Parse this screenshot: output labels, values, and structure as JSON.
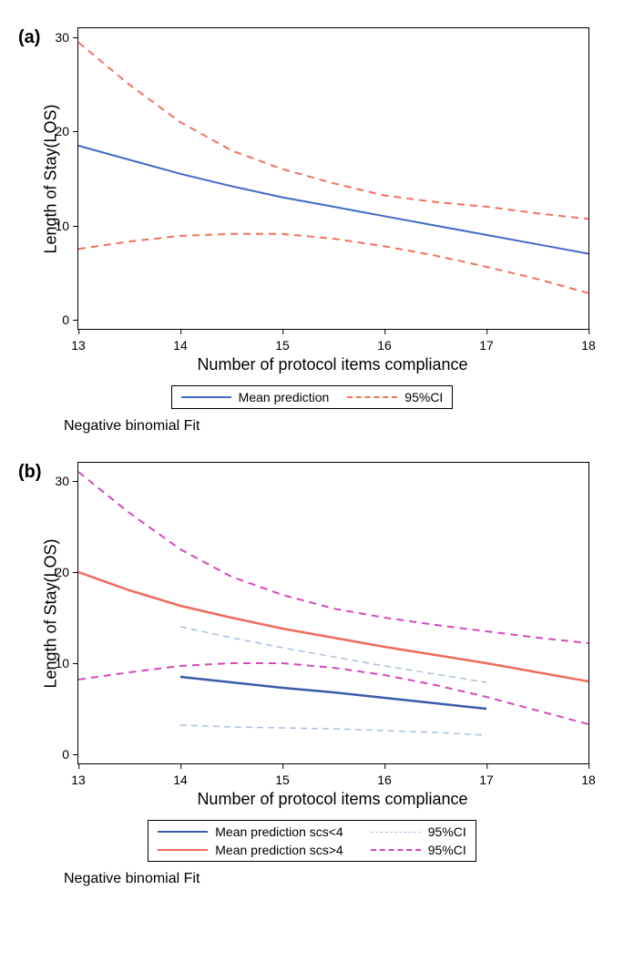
{
  "panel_a": {
    "label": "(a)",
    "type": "line",
    "x_label": "Number of protocol items compliance",
    "y_label": "Length of Stay(LOS)",
    "x_ticks": [
      13,
      14,
      15,
      16,
      17,
      18
    ],
    "y_ticks": [
      0,
      10,
      20,
      30
    ],
    "xlim": [
      13,
      18
    ],
    "ylim": [
      -1,
      31
    ],
    "plot_bg": "#ffffff",
    "border_color": "#000000",
    "tick_fontsize": 14,
    "label_fontsize": 18,
    "series": [
      {
        "name": "mean",
        "label": "Mean prediction",
        "color": "#4169c8",
        "width": 2,
        "dash": "none",
        "x": [
          13,
          13.5,
          14,
          14.5,
          15,
          15.5,
          16,
          16.5,
          17,
          17.5,
          18
        ],
        "y": [
          18.5,
          17.0,
          15.5,
          14.2,
          13.0,
          12.0,
          11.0,
          10.0,
          9.0,
          8.0,
          7.0
        ]
      },
      {
        "name": "ci_upper",
        "label": "95%CI",
        "color": "#f1725e",
        "width": 2,
        "dash": "8,6",
        "x": [
          13,
          13.5,
          14,
          14.5,
          15,
          15.5,
          16,
          16.5,
          17,
          17.5,
          18
        ],
        "y": [
          29.5,
          25.0,
          21.0,
          18.0,
          16.0,
          14.5,
          13.2,
          12.5,
          12.0,
          11.3,
          10.7
        ]
      },
      {
        "name": "ci_lower",
        "label": "95%CI",
        "color": "#f1725e",
        "width": 2,
        "dash": "8,6",
        "x": [
          13,
          13.5,
          14,
          14.5,
          15,
          15.5,
          16,
          16.5,
          17,
          17.5,
          18
        ],
        "y": [
          7.5,
          8.3,
          8.9,
          9.1,
          9.1,
          8.6,
          7.8,
          6.8,
          5.6,
          4.3,
          2.8
        ]
      }
    ],
    "legend": [
      {
        "color": "#4169c8",
        "dash": "solid",
        "label": "Mean prediction"
      },
      {
        "color": "#f1725e",
        "dash": "dashed",
        "label": "95%CI"
      }
    ],
    "caption": "Negative binomial Fit"
  },
  "panel_b": {
    "label": "(b)",
    "type": "line",
    "x_label": "Number of protocol items compliance",
    "y_label": "Length of Stay(LOS)",
    "x_ticks": [
      13,
      14,
      15,
      16,
      17,
      18
    ],
    "y_ticks": [
      0,
      10,
      20,
      30
    ],
    "xlim": [
      13,
      18
    ],
    "ylim": [
      -1,
      32
    ],
    "plot_bg": "#ffffff",
    "border_color": "#000000",
    "tick_fontsize": 14,
    "label_fontsize": 18,
    "series": [
      {
        "name": "scs_lt4_mean",
        "label": "Mean prediction scs<4",
        "color": "#3a5ba8",
        "width": 2.5,
        "dash": "none",
        "x": [
          14,
          14.5,
          15,
          15.5,
          16,
          16.5,
          17
        ],
        "y": [
          8.5,
          7.9,
          7.3,
          6.8,
          6.2,
          5.6,
          5.0
        ]
      },
      {
        "name": "scs_lt4_ci_upper",
        "label": "95%CI scs<4",
        "color": "#a8c0e0",
        "width": 1.5,
        "dash": "7,5",
        "x": [
          14,
          14.5,
          15,
          15.5,
          16,
          16.5,
          17
        ],
        "y": [
          14.0,
          12.8,
          11.7,
          10.7,
          9.7,
          8.8,
          7.9
        ]
      },
      {
        "name": "scs_lt4_ci_lower",
        "label": "95%CI scs<4",
        "color": "#a8c0e0",
        "width": 1.5,
        "dash": "7,5",
        "x": [
          14,
          14.5,
          15,
          15.5,
          16,
          16.5,
          17
        ],
        "y": [
          3.2,
          3.0,
          2.9,
          2.8,
          2.6,
          2.4,
          2.1
        ]
      },
      {
        "name": "scs_gt4_mean",
        "label": "Mean prediction scs>4",
        "color": "#ef6b5a",
        "width": 2.5,
        "dash": "none",
        "x": [
          13,
          13.5,
          14,
          14.5,
          15,
          15.5,
          16,
          16.5,
          17,
          17.5,
          18
        ],
        "y": [
          20.0,
          18.0,
          16.3,
          15.0,
          13.8,
          12.8,
          11.8,
          10.9,
          10.0,
          9.0,
          8.0
        ]
      },
      {
        "name": "scs_gt4_ci_upper",
        "label": "95%CI scs>4",
        "color": "#d448c0",
        "width": 2,
        "dash": "8,6",
        "x": [
          13,
          13.5,
          14,
          14.5,
          15,
          15.5,
          16,
          16.5,
          17,
          17.5,
          18
        ],
        "y": [
          31.0,
          26.5,
          22.5,
          19.5,
          17.5,
          16.0,
          15.0,
          14.2,
          13.5,
          12.8,
          12.2
        ]
      },
      {
        "name": "scs_gt4_ci_lower",
        "label": "95%CI scs>4",
        "color": "#d448c0",
        "width": 2,
        "dash": "8,6",
        "x": [
          13,
          13.5,
          14,
          14.5,
          15,
          15.5,
          16,
          16.5,
          17,
          17.5,
          18
        ],
        "y": [
          8.2,
          9.0,
          9.7,
          10.0,
          10.0,
          9.5,
          8.7,
          7.6,
          6.3,
          4.8,
          3.3
        ]
      }
    ],
    "legend": [
      {
        "color": "#3a5ba8",
        "dash": "solid",
        "label": "Mean prediction scs<4",
        "width": 2.5
      },
      {
        "color": "#a8c0e0",
        "dash": "dashed",
        "label": "95%CI",
        "width": 1.5
      },
      {
        "color": "#ef6b5a",
        "dash": "solid",
        "label": "Mean prediction scs>4",
        "width": 2.5
      },
      {
        "color": "#d448c0",
        "dash": "dashed",
        "label": "95%CI",
        "width": 2
      }
    ],
    "caption": "Negative binomial Fit"
  }
}
